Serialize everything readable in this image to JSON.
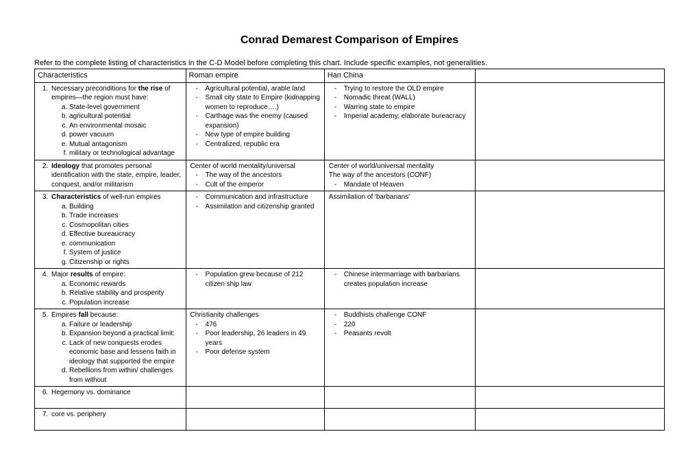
{
  "title": "Conrad Demarest Comparison of Empires",
  "instruction": "Refer to the complete listing of characteristics in the C-D Model before completing this chart. Include specific examples, not generalities.",
  "headers": {
    "col1": "Characteristics",
    "col2": "Roman empire",
    "col3": "Han China",
    "col4": ""
  },
  "rows": {
    "r1": {
      "char_lead_a": "Necessary preconditions for ",
      "char_bold": "the rise",
      "char_lead_b": " of empires—the region must have:",
      "char_items": {
        "a": "State-level government",
        "b": "agricultural potential",
        "c": "An environmental mosaic",
        "d": "power vacuum",
        "e": "Mutual antagonism",
        "f": "military or technological advantage"
      },
      "roman": {
        "i1": "Agricultural potential, arable land",
        "i2": "Small city state to Empire (kidnapping women to reproduce….)",
        "i3": "Carthage was the enemy (caused expansion)",
        "i4": "New type of empire building",
        "i5": "Centralized, republic era"
      },
      "han": {
        "i1": "Trying to restore the OLD empire",
        "i2": "Nomadic threat (WALL)",
        "i3": "Warring state to empire",
        "i4": "Imperial academy, elaborate bureacracy"
      }
    },
    "r2": {
      "char_bold": "Ideology",
      "char_rest": " that promotes personal identification with the state, empire, leader, conquest, and/or militarism",
      "roman_top": "Center of world mentality/universal",
      "roman": {
        "i1": "The way of the ancestors",
        "i2": "Cult of the emperor"
      },
      "han_top1": "Center of world/universal mentality",
      "han_top2": "The way of the ancestors  (CONF)",
      "han": {
        "i1": "Mandate of Heaven"
      }
    },
    "r3": {
      "char_bold": "Characteristics",
      "char_rest": " of well-run empires",
      "char_items": {
        "a": "Building",
        "b": "Trade increases",
        "c": "Cosmopolitan cities",
        "d": "Effective bureaucracy",
        "e": "communication",
        "f": "System of justice",
        "g": "Citizenship or rights"
      },
      "roman": {
        "i1": "Communication and infrastructure",
        "i2": "Assimilation and citizenship granted"
      },
      "han_top": "Assimilation of 'barbarians'"
    },
    "r4": {
      "char_lead_a": "Major ",
      "char_bold": "results",
      "char_lead_b": " of empire:",
      "char_items": {
        "a": "Economic rewards",
        "b": "Relative stability and prosperity",
        "c": "Population increase"
      },
      "roman": {
        "i1": "Population grew because of 212 citizen ship law"
      },
      "han": {
        "i1": "Chinese intermarriage with barbarians creates population increase"
      }
    },
    "r5": {
      "char_lead_a": "Empires ",
      "char_bold": "fall",
      "char_lead_b": " because:",
      "char_items": {
        "a": "Failure or leadership",
        "b": "Expansion beyond a practical  limit:",
        "c": "Lack of new conquests erodes economic base and lessens faith in ideology that supported the empire",
        "d": "Rebellions from within/ challenges from without"
      },
      "roman_top": "Christianity challenges",
      "roman": {
        "i1": "476",
        "i2": "Poor leadership, 26 leaders in 49 years",
        "i3": "Poor defense system"
      },
      "han": {
        "i1": "Buddhists challenge CONF",
        "i2": "220",
        "i3": "Peasants revolt"
      }
    },
    "r6": {
      "char": "Hegemony vs. dominance"
    },
    "r7": {
      "char": "core vs. periphery"
    }
  }
}
